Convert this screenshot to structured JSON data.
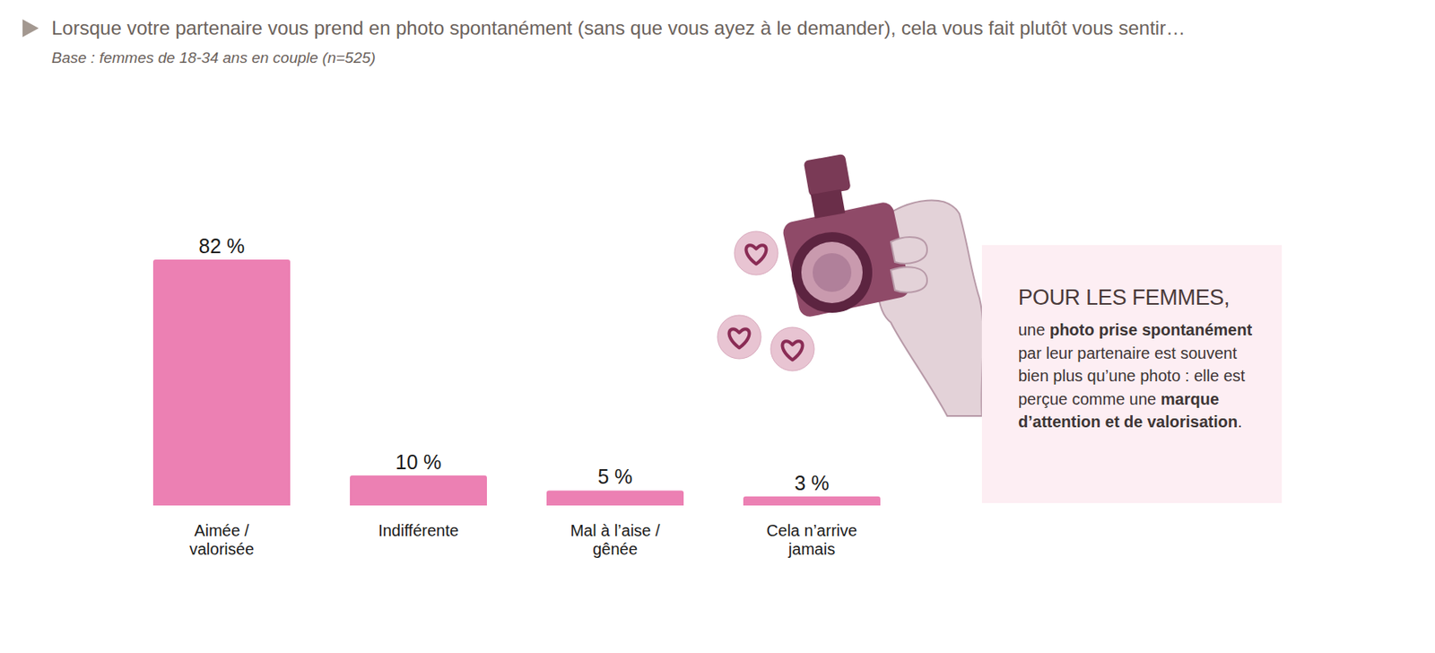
{
  "chart_data": {
    "type": "bar",
    "title": "Lorsque votre partenaire vous prend en photo spontanément (sans que vous ayez à le demander), cela vous fait plutôt vous sentir…",
    "subtitle": "Base : femmes de 18-34 ans en couple (n=525)",
    "categories": [
      "Aimée / valorisée",
      "Indifférente",
      "Mal à l’aise / gênée",
      "Cela n’arrive jamais"
    ],
    "values": [
      82,
      10,
      5,
      3
    ],
    "value_labels": [
      "82 %",
      "10 %",
      "5 %",
      "3 %"
    ],
    "color": "#ec80b3",
    "ylim": [
      0,
      82
    ],
    "data_labels": true,
    "tick_labels": "x",
    "annotation": {
      "heading": "POUR LES FEMMES,",
      "text": [
        "une ",
        "photo prise spontanément",
        " par leur partenaire est souvent bien plus qu’une photo : elle est perçue comme une ",
        "marque d’attention et de valorisation",
        "."
      ]
    }
  }
}
